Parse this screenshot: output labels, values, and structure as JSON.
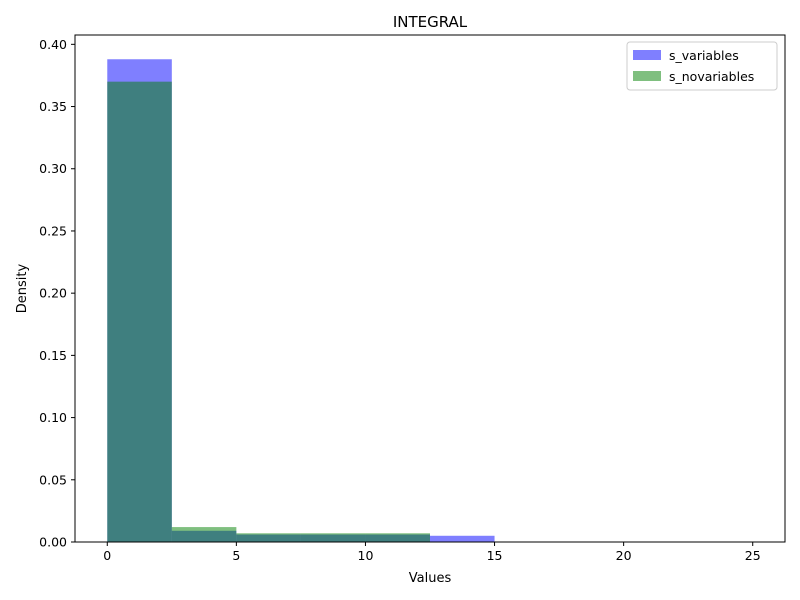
{
  "chart_data": {
    "type": "bar",
    "title": "INTEGRAL",
    "xlabel": "Values",
    "ylabel": "Density",
    "xlim": [
      -1.25,
      26.25
    ],
    "ylim": [
      0,
      0.4075
    ],
    "xticks": [
      0,
      5,
      10,
      15,
      20,
      25
    ],
    "xtick_labels": [
      "0",
      "5",
      "10",
      "15",
      "20",
      "25"
    ],
    "yticks": [
      0.0,
      0.05,
      0.1,
      0.15,
      0.2,
      0.25,
      0.3,
      0.35,
      0.4
    ],
    "ytick_labels": [
      "0.00",
      "0.05",
      "0.10",
      "0.15",
      "0.20",
      "0.25",
      "0.30",
      "0.35",
      "0.40"
    ],
    "bin_edges": [
      0,
      2.5,
      5,
      7.5,
      10,
      12.5,
      15,
      17.5,
      20,
      22.5,
      25
    ],
    "grid": false,
    "legend_position": "top-right",
    "series": [
      {
        "name": "s_variables",
        "color": "#0000ff",
        "alpha": 0.5,
        "values": [
          0.388,
          0.009,
          0.006,
          0.006,
          0.006,
          0.005,
          0.0,
          0.0,
          0.0,
          0.0
        ]
      },
      {
        "name": "s_novariables",
        "color": "#008000",
        "alpha": 0.5,
        "values": [
          0.37,
          0.012,
          0.007,
          0.007,
          0.007,
          0.0,
          0.0,
          0.0,
          0.0,
          0.0
        ]
      }
    ]
  }
}
